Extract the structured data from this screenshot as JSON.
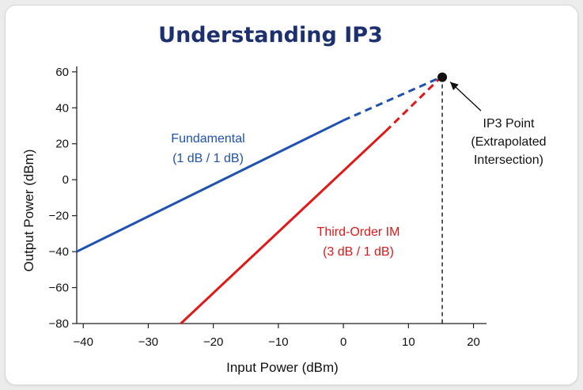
{
  "chart_data": {
    "type": "line",
    "title": "Understanding IP3",
    "xlabel": "Input Power (dBm)",
    "ylabel": "Output Power (dBm)",
    "xlim": [
      -41,
      22
    ],
    "ylim": [
      -80,
      63
    ],
    "xticks": [
      -40,
      -30,
      -20,
      -10,
      0,
      10,
      20
    ],
    "yticks": [
      -80,
      -60,
      -40,
      -20,
      0,
      20,
      40,
      60
    ],
    "xtick_labels": [
      "−40",
      "−30",
      "−20",
      "−10",
      "0",
      "10",
      "20"
    ],
    "ytick_labels": [
      "−80",
      "−60",
      "−40",
      "−20",
      "0",
      "20",
      "40",
      "60"
    ],
    "grid": false,
    "series": [
      {
        "name": "Fundamental",
        "slope_label": "(1 dB / 1 dB)",
        "color": "#1f52b0",
        "measured": [
          [
            -41,
            -40
          ],
          [
            0,
            33
          ]
        ],
        "extrapolated": [
          [
            0,
            33
          ],
          [
            15,
            57
          ]
        ]
      },
      {
        "name": "Third-Order IM",
        "slope_label": "(3 dB / 1 dB)",
        "color": "#e01818",
        "measured": [
          [
            -25,
            -80
          ],
          [
            6.5,
            27
          ]
        ],
        "extrapolated": [
          [
            6.5,
            27
          ],
          [
            15,
            57
          ]
        ]
      }
    ],
    "ip3_point": {
      "x": 15.2,
      "y": 57,
      "label_lines": [
        "IP3 Point",
        "(Extrapolated",
        "Intersection)"
      ]
    }
  }
}
